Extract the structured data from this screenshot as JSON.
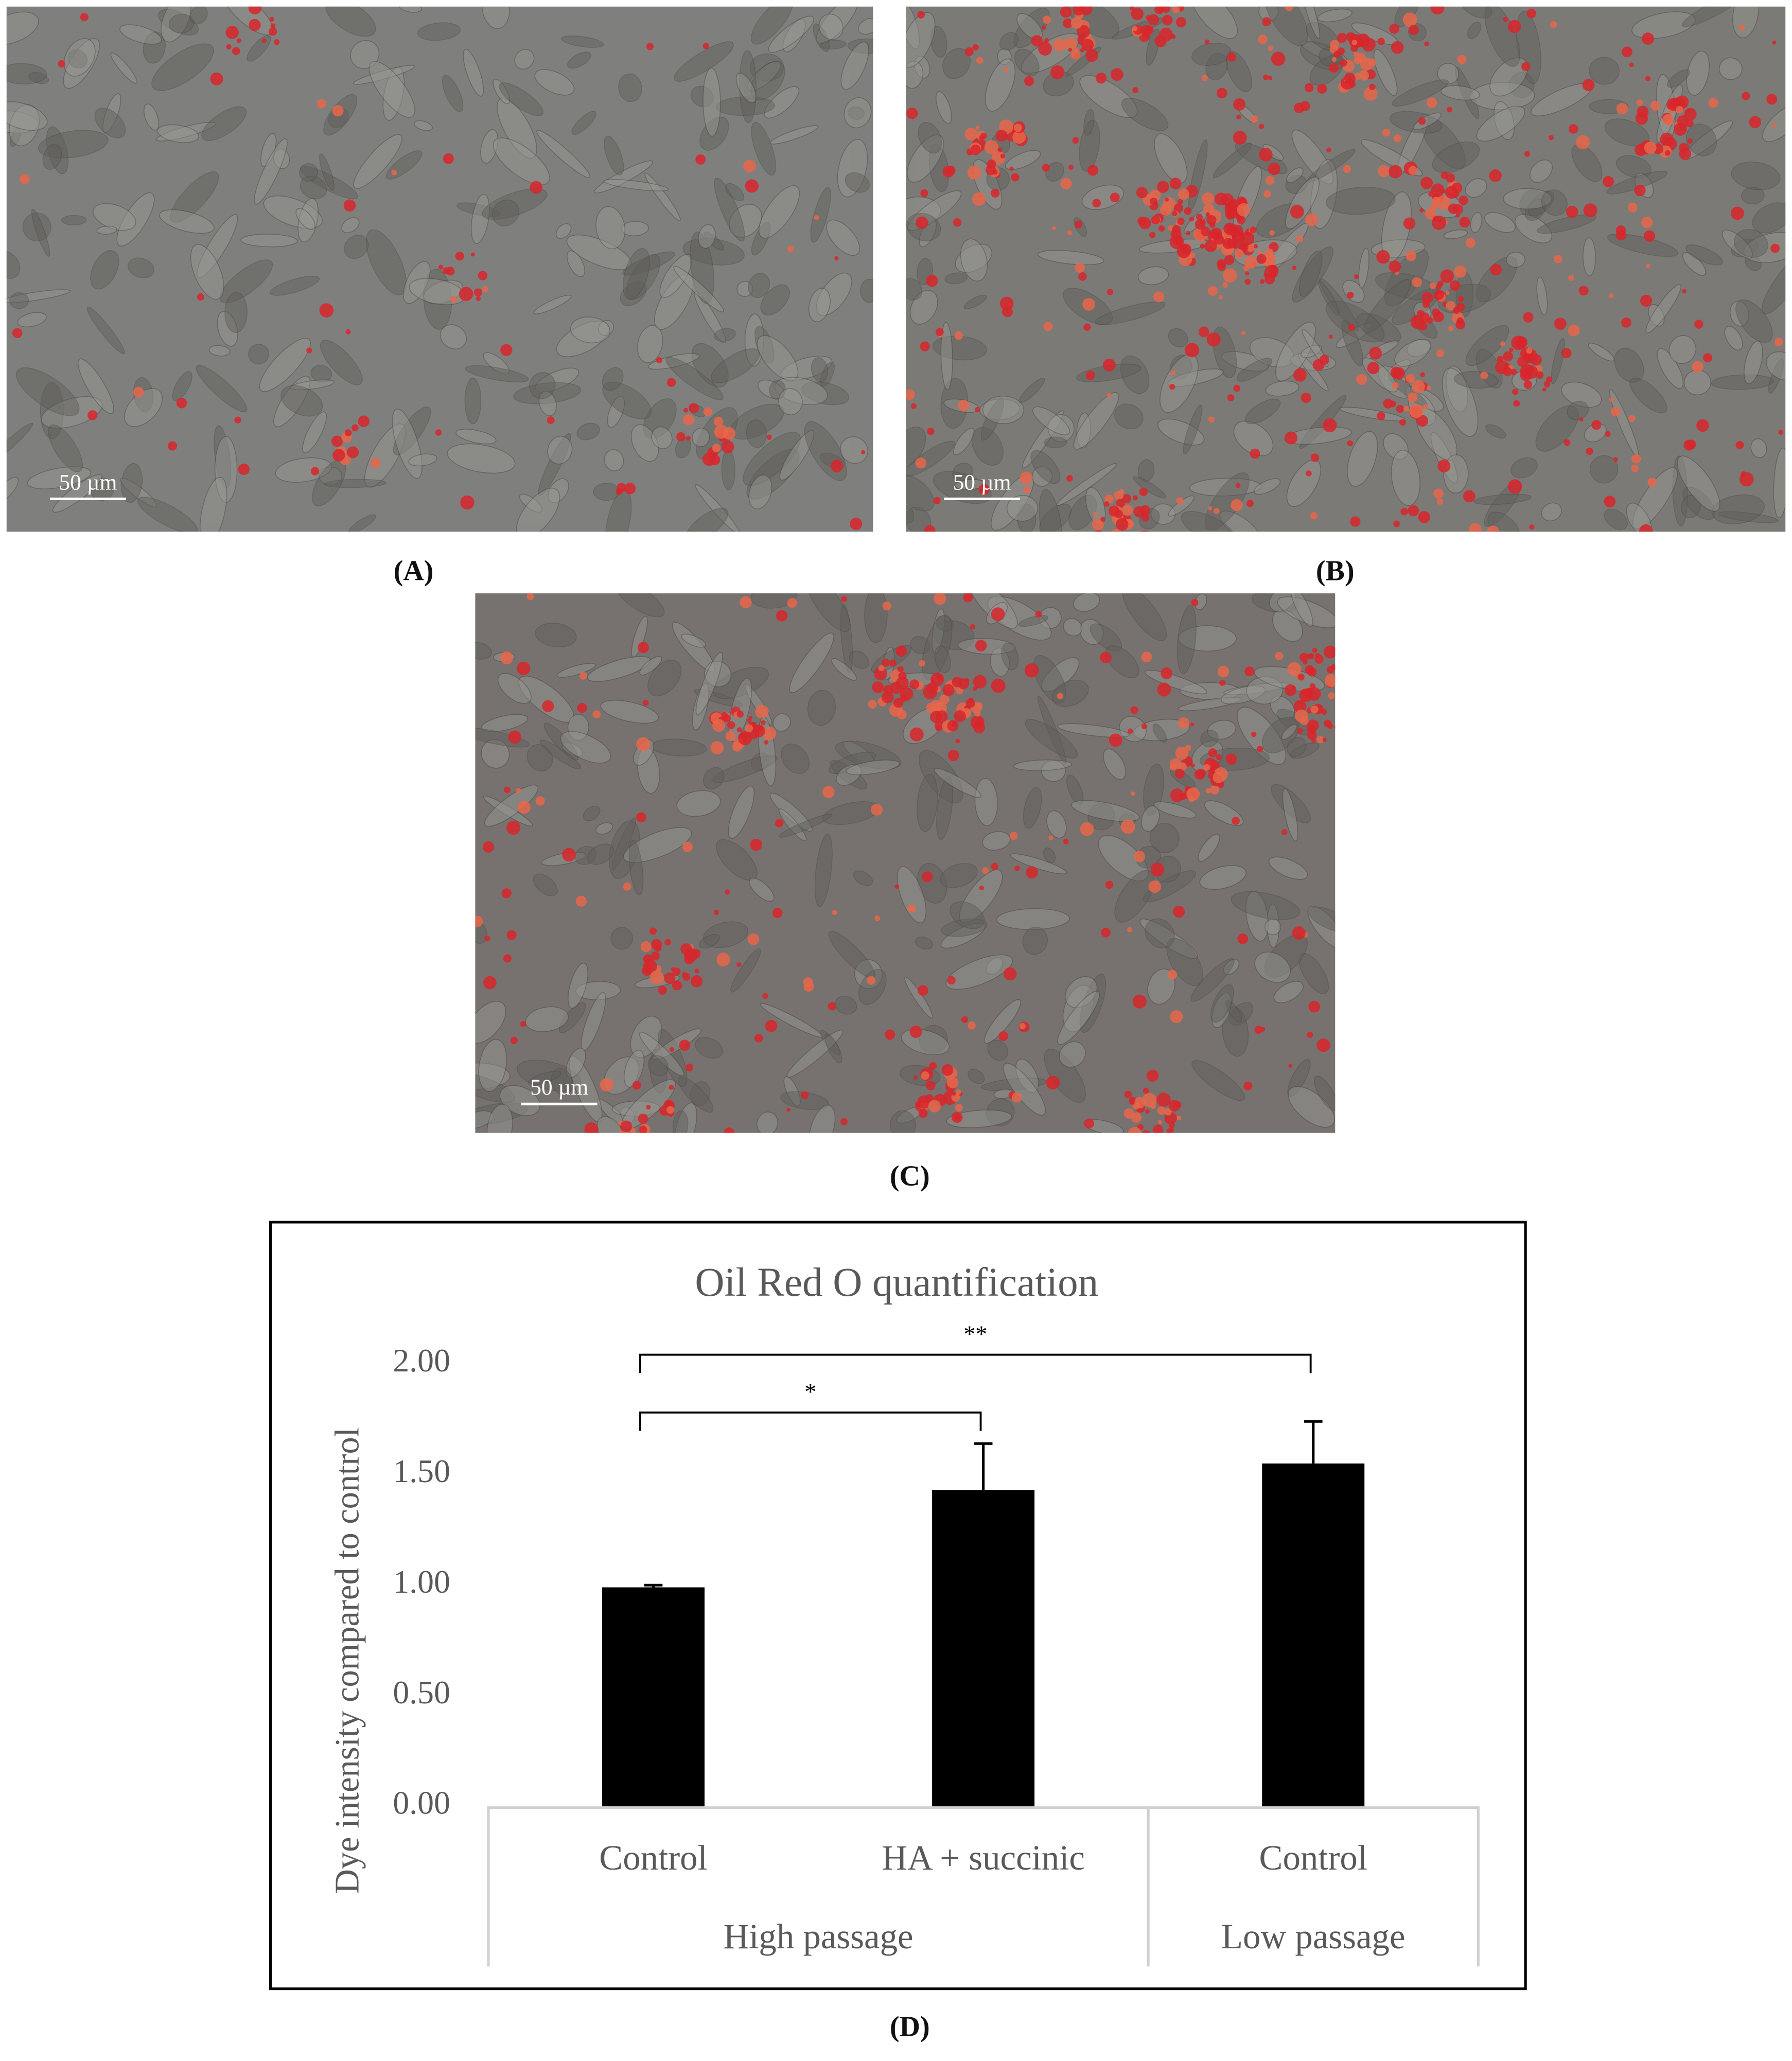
{
  "panels": [
    {
      "label": "(A)",
      "scale_bar": "50 µm"
    },
    {
      "label": "(B)",
      "scale_bar": "50 µm"
    },
    {
      "label": "(C)",
      "scale_bar": "50 µm"
    }
  ],
  "chart_panel_label": "(D)",
  "chart_data": {
    "type": "bar",
    "title": "Oil Red O quantification",
    "y_label": "Dye intensity compared to control",
    "categories": [
      "Control",
      "HA + succinic",
      "Control"
    ],
    "groups": [
      {
        "label": "High passage",
        "size": 2
      },
      {
        "label": "Low passage",
        "size": 1
      }
    ],
    "values": [
      0.99,
      1.43,
      1.55
    ],
    "errors": [
      0.01,
      0.21,
      0.19
    ],
    "color": "#000000",
    "ylim": [
      0,
      2
    ],
    "yticks": [
      {
        "value": 0,
        "label": "0.00"
      },
      {
        "value": 0.5,
        "label": "0.50"
      },
      {
        "value": 1,
        "label": "1.00"
      },
      {
        "value": 1.5,
        "label": "1.50"
      },
      {
        "value": 2,
        "label": "2.00"
      }
    ],
    "annotations": [
      {
        "text": "*",
        "from": 0,
        "to": 1
      },
      {
        "text": "**",
        "from": 0,
        "to": 2
      }
    ]
  }
}
